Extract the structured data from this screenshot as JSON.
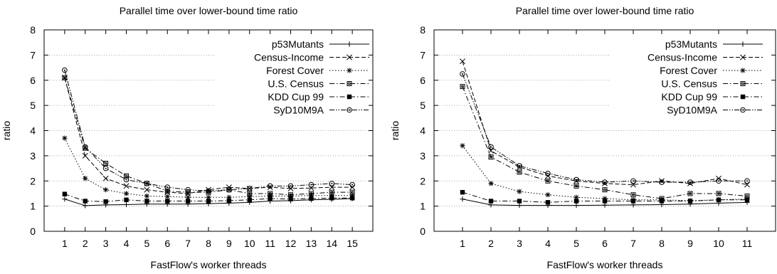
{
  "chart_data": [
    {
      "type": "line",
      "title": "Parallel time over lower-bound time ratio",
      "xlabel": "FastFlow's worker threads",
      "ylabel": "ratio",
      "ylim": [
        0,
        8
      ],
      "yticks": [
        "0",
        "1",
        "2",
        "3",
        "4",
        "5",
        "6",
        "7",
        "8"
      ],
      "x": [
        1,
        2,
        3,
        4,
        5,
        6,
        7,
        8,
        9,
        10,
        11,
        12,
        13,
        14,
        15
      ],
      "grid": "horizontal dotted",
      "legend_position": "top-right",
      "series": [
        {
          "name": "p53Mutants",
          "marker": "plus",
          "dash": "solid",
          "values": [
            1.28,
            1.02,
            1.05,
            1.06,
            1.08,
            1.08,
            1.08,
            1.1,
            1.12,
            1.15,
            1.2,
            1.22,
            1.25,
            1.27,
            1.3
          ]
        },
        {
          "name": "Census-Income",
          "marker": "cross",
          "dash": "dashed",
          "values": [
            6.1,
            3.0,
            2.1,
            1.8,
            1.65,
            1.55,
            1.5,
            1.65,
            1.75,
            1.7,
            1.75,
            1.7,
            1.72,
            1.75,
            1.75
          ]
        },
        {
          "name": "Forest Cover",
          "marker": "star",
          "dash": "dotted",
          "values": [
            3.7,
            2.1,
            1.65,
            1.5,
            1.4,
            1.38,
            1.35,
            1.35,
            1.35,
            1.38,
            1.4,
            1.4,
            1.42,
            1.42,
            1.42
          ]
        },
        {
          "name": "U.S. Census",
          "marker": "square-open",
          "dash": "dashdot",
          "values": [
            6.1,
            3.3,
            2.7,
            2.2,
            1.9,
            1.6,
            1.55,
            1.55,
            1.65,
            1.5,
            1.5,
            1.45,
            1.5,
            1.55,
            1.55
          ]
        },
        {
          "name": "KDD Cup 99",
          "marker": "square-filled",
          "dash": "dashdot",
          "values": [
            1.48,
            1.2,
            1.18,
            1.25,
            1.2,
            1.2,
            1.2,
            1.2,
            1.22,
            1.25,
            1.3,
            1.28,
            1.3,
            1.32,
            1.32
          ]
        },
        {
          "name": "SyD10M9A",
          "marker": "circle-dot",
          "dash": "dashdotdot",
          "values": [
            6.4,
            3.35,
            2.5,
            2.05,
            1.9,
            1.75,
            1.65,
            1.6,
            1.65,
            1.7,
            1.8,
            1.8,
            1.85,
            1.9,
            1.85
          ]
        }
      ]
    },
    {
      "type": "line",
      "title": "Parallel time over lower-bound time ratio",
      "xlabel": "FastFlow's worker threads",
      "ylabel": "ratio",
      "ylim": [
        0,
        8
      ],
      "yticks": [
        "0",
        "1",
        "2",
        "3",
        "4",
        "5",
        "6",
        "7",
        "8"
      ],
      "x": [
        1,
        2,
        3,
        4,
        5,
        6,
        7,
        8,
        9,
        10,
        11
      ],
      "grid": "horizontal dotted",
      "legend_position": "top-right",
      "series": [
        {
          "name": "p53Mutants",
          "marker": "plus",
          "dash": "solid",
          "values": [
            1.28,
            1.05,
            1.03,
            1.03,
            1.03,
            1.04,
            1.05,
            1.06,
            1.08,
            1.12,
            1.15
          ]
        },
        {
          "name": "Census-Income",
          "marker": "cross",
          "dash": "dashed",
          "values": [
            6.75,
            3.2,
            2.55,
            2.2,
            2.0,
            1.9,
            1.85,
            2.0,
            1.9,
            2.1,
            1.85
          ]
        },
        {
          "name": "Forest Cover",
          "marker": "star",
          "dash": "dotted",
          "values": [
            3.4,
            1.9,
            1.58,
            1.45,
            1.35,
            1.3,
            1.25,
            1.25,
            1.22,
            1.25,
            1.28
          ]
        },
        {
          "name": "U.S. Census",
          "marker": "square-open",
          "dash": "dashdot",
          "values": [
            5.75,
            2.95,
            2.35,
            2.0,
            1.8,
            1.65,
            1.45,
            1.3,
            1.5,
            1.5,
            1.4
          ]
        },
        {
          "name": "KDD Cup 99",
          "marker": "square-filled",
          "dash": "dashdot",
          "values": [
            1.55,
            1.2,
            1.2,
            1.15,
            1.2,
            1.2,
            1.2,
            1.2,
            1.2,
            1.25,
            1.25
          ]
        },
        {
          "name": "SyD10M9A",
          "marker": "circle-dot",
          "dash": "dashdotdot",
          "values": [
            6.25,
            3.35,
            2.6,
            2.3,
            2.05,
            1.95,
            2.0,
            1.95,
            1.95,
            2.0,
            2.0
          ]
        }
      ]
    }
  ]
}
